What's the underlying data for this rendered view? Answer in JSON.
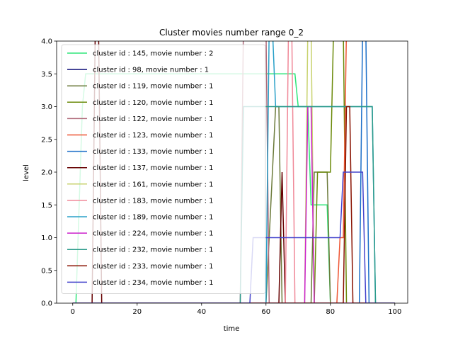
{
  "chart_data": {
    "type": "line",
    "title": "Cluster movies number range 0_2",
    "xlabel": "time",
    "ylabel": "level",
    "xlim": [
      -5,
      104
    ],
    "ylim": [
      0,
      4
    ],
    "xticks": [
      "0",
      "20",
      "40",
      "60",
      "80",
      "100"
    ],
    "yticks": [
      "0.0",
      "0.5",
      "1.0",
      "1.5",
      "2.0",
      "2.5",
      "3.0",
      "3.5",
      "4.0"
    ],
    "grid": false,
    "legend_position": "upper-left",
    "series": [
      {
        "name": "cluster id : 145, movie number : 2",
        "color": "#2ee67a",
        "x": [
          0,
          1,
          3,
          4,
          52,
          53,
          60,
          69,
          70,
          72,
          73,
          74,
          78,
          79,
          80,
          81,
          100
        ],
        "y": [
          0,
          0,
          3,
          3.5,
          3.5,
          3.5,
          3.5,
          3.5,
          3.0,
          3.0,
          3.0,
          1.5,
          1.5,
          1.5,
          0,
          0,
          0
        ]
      },
      {
        "name": "cluster id : 98, movie number : 1",
        "color": "#10107a",
        "x": [
          0,
          100
        ],
        "y": [
          0,
          0
        ]
      },
      {
        "name": "cluster id : 119, movie number : 1",
        "color": "#6b7a3a",
        "x": [
          0,
          40,
          60,
          63,
          64,
          65,
          66,
          67,
          74,
          75,
          77,
          78,
          79,
          80,
          100
        ],
        "y": [
          0,
          0,
          0,
          3,
          3,
          0,
          0,
          0,
          0,
          2,
          2,
          2,
          2,
          0,
          0
        ]
      },
      {
        "name": "cluster id : 120, movie number : 1",
        "color": "#6b8a0a",
        "x": [
          0,
          75,
          76,
          77,
          78,
          79,
          80,
          81,
          84,
          85,
          100
        ],
        "y": [
          0,
          0,
          2,
          2,
          2,
          2,
          2,
          4.2,
          4.2,
          0,
          0
        ]
      },
      {
        "name": "cluster id : 122, movie number : 1",
        "color": "#b06a7a",
        "x": [
          0,
          52,
          53,
          60,
          61,
          100
        ],
        "y": [
          0,
          0,
          4.2,
          4.2,
          0,
          0
        ]
      },
      {
        "name": "cluster id : 123, movie number : 1",
        "color": "#ee5533",
        "x": [
          0,
          82,
          83,
          84,
          85,
          100
        ],
        "y": [
          0,
          0,
          1,
          1,
          4.2,
          4.2
        ]
      },
      {
        "name": "cluster id : 133, movie number : 1",
        "color": "#1a6ec8",
        "x": [
          0,
          89,
          90,
          91,
          92,
          93,
          100
        ],
        "y": [
          0,
          0,
          4.2,
          4.2,
          0,
          0,
          0
        ]
      },
      {
        "name": "cluster id : 137, movie number : 1",
        "color": "#660000",
        "x": [
          0,
          6,
          7,
          8,
          9,
          10,
          11,
          64,
          65,
          66,
          100
        ],
        "y": [
          0,
          0,
          4.2,
          4.2,
          0,
          0,
          0,
          0,
          2,
          0,
          0
        ]
      },
      {
        "name": "cluster id : 161, movie number : 1",
        "color": "#c8d26e",
        "x": [
          0,
          72,
          73,
          74,
          75,
          100
        ],
        "y": [
          0,
          0,
          4.2,
          4.2,
          0,
          0
        ]
      },
      {
        "name": "cluster id : 183, movie number : 1",
        "color": "#f08898",
        "x": [
          0,
          66,
          67,
          68,
          69,
          100
        ],
        "y": [
          0,
          0,
          4.2,
          4.2,
          0,
          0
        ]
      },
      {
        "name": "cluster id : 189, movie number : 1",
        "color": "#2aa0c8",
        "x": [
          0,
          60,
          61,
          62,
          63,
          70,
          71,
          90,
          92,
          93,
          94,
          100
        ],
        "y": [
          0,
          0,
          4.2,
          4.2,
          3,
          3,
          3,
          3,
          3,
          3,
          0,
          0
        ]
      },
      {
        "name": "cluster id : 224, movie number : 1",
        "color": "#cc22cc",
        "x": [
          0,
          72,
          73,
          74,
          75,
          100
        ],
        "y": [
          0,
          0,
          3,
          3,
          0,
          0
        ]
      },
      {
        "name": "cluster id : 232, movie number : 1",
        "color": "#2a9a8a",
        "x": [
          0,
          20,
          52,
          53,
          55,
          60,
          93,
          94,
          100
        ],
        "y": [
          0,
          0,
          0,
          3,
          3,
          3,
          3,
          0,
          0
        ]
      },
      {
        "name": "cluster id : 233, movie number : 1",
        "color": "#881100",
        "x": [
          0,
          84,
          85,
          86,
          87,
          100
        ],
        "y": [
          0,
          0,
          3,
          3,
          0,
          0
        ]
      },
      {
        "name": "cluster id : 234, movie number : 1",
        "color": "#4444cc",
        "x": [
          0,
          55,
          56,
          57,
          58,
          83,
          84,
          85,
          86,
          87,
          90,
          91,
          100
        ],
        "y": [
          0,
          0,
          1,
          1,
          1,
          1,
          2,
          2,
          2,
          2,
          2,
          0,
          0
        ]
      }
    ]
  }
}
